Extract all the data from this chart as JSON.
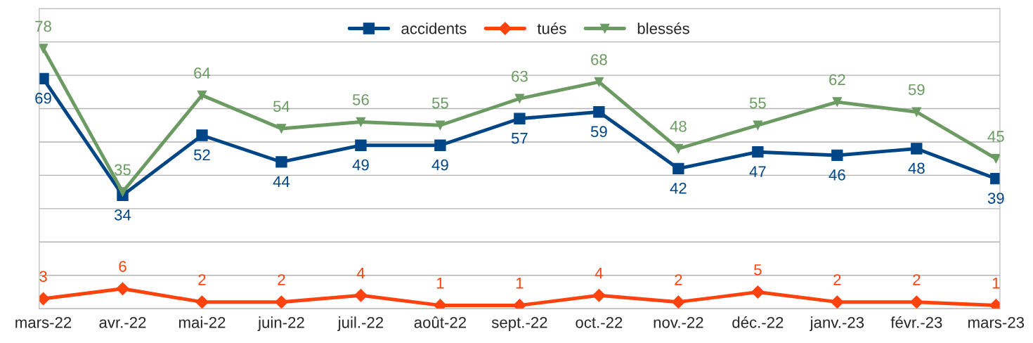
{
  "chart_data": {
    "type": "line",
    "categories": [
      "mars-22",
      "avr.-22",
      "mai-22",
      "juin-22",
      "juil.-22",
      "août-22",
      "sept.-22",
      "oct.-22",
      "nov.-22",
      "déc.-22",
      "janv.-23",
      "févr.-23",
      "mars-23"
    ],
    "series": [
      {
        "name": "accidents",
        "color": "#004586",
        "marker": "square",
        "values": [
          69,
          34,
          52,
          44,
          49,
          49,
          57,
          59,
          42,
          47,
          46,
          48,
          39
        ]
      },
      {
        "name": "tués",
        "color": "#ff420e",
        "marker": "diamond",
        "values": [
          3,
          6,
          2,
          2,
          4,
          1,
          1,
          4,
          2,
          5,
          2,
          2,
          1
        ]
      },
      {
        "name": "blessés",
        "color": "#6b9b62",
        "marker": "triangle",
        "values": [
          78,
          35,
          64,
          54,
          56,
          55,
          63,
          68,
          48,
          55,
          62,
          59,
          45
        ]
      }
    ],
    "ylim": [
      0,
      90
    ],
    "yticks": [
      {
        "value": 0,
        "label": null
      },
      {
        "value": 10,
        "label": null
      },
      {
        "value": 20,
        "label": null
      },
      {
        "value": 30,
        "label": null
      },
      {
        "value": 40,
        "label": null
      },
      {
        "value": 50,
        "label": null
      },
      {
        "value": 60,
        "label": null
      },
      {
        "value": 70,
        "label": null
      },
      {
        "value": 80,
        "label": null
      },
      {
        "value": 90,
        "label": null
      }
    ],
    "tick_labels": "x",
    "grid": "y",
    "legend": "top",
    "data_labels": true,
    "line_style": "solid"
  }
}
